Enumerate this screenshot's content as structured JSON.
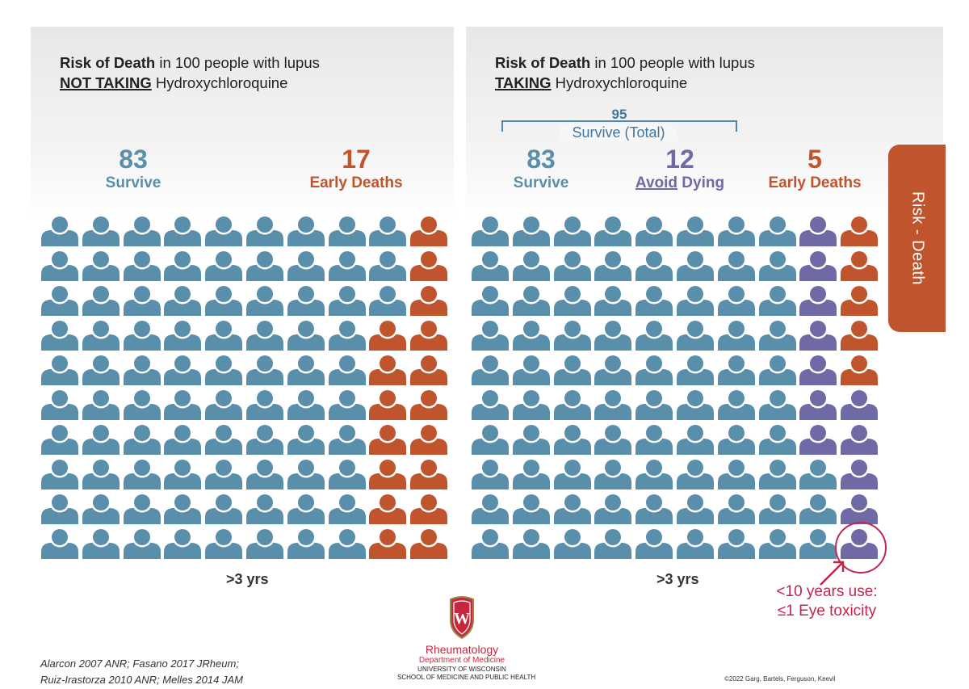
{
  "left_panel": {
    "title_bold": "Risk of Death",
    "title_rest": " in 100 people with lupus",
    "subtitle_underlined": "NOT TAKING",
    "subtitle_rest": " Hydroxychloroquine",
    "survive_count": "83",
    "survive_label": "Survive",
    "deaths_count": "17",
    "deaths_label": "Early Deaths",
    "duration": ">3 yrs"
  },
  "right_panel": {
    "title_bold": "Risk of Death",
    "title_rest": " in 100 people with lupus",
    "subtitle_underlined": "TAKING",
    "subtitle_rest": " Hydroxychloroquine",
    "total_survive_count": "95",
    "total_survive_label": "Survive (Total)",
    "survive_count": "83",
    "survive_label": "Survive",
    "avoid_count": "12",
    "avoid_label_underlined": "Avoid",
    "avoid_label_rest": " Dying",
    "deaths_count": "5",
    "deaths_label": "Early Deaths",
    "duration": ">3 yrs",
    "eye_note_line1": "<10 years use:",
    "eye_note_line2": "≤1 Eye toxicity"
  },
  "side_tab": "Risk - Death",
  "citation_line1": "Alarcon 2007 ANR; Fasano 2017 JRheum;",
  "citation_line2": "Ruiz-Irastorza 2010 ANR; Melles 2014 JAM",
  "logo": {
    "crest_letter": "W",
    "name": "Rheumatology",
    "dept": "Department of Medicine",
    "univ": "UNIVERSITY OF WISCONSIN",
    "school": "SCHOOL OF MEDICINE AND PUBLIC HEALTH"
  },
  "copyright": "©2022 Garg, Bartels, Ferguson, Keevil",
  "colors": {
    "survive": "#5a8fab",
    "death": "#c0552d",
    "avoid": "#6d6aa6",
    "highlight": "#c2264d"
  },
  "icon_arrays": {
    "left": {
      "rows": 10,
      "cols": 10,
      "survive": 83,
      "deaths": 17
    },
    "right": {
      "rows": 10,
      "cols": 10,
      "survive": 83,
      "avoid_dying": 12,
      "deaths": 5,
      "eye_toxicity": 1
    }
  }
}
